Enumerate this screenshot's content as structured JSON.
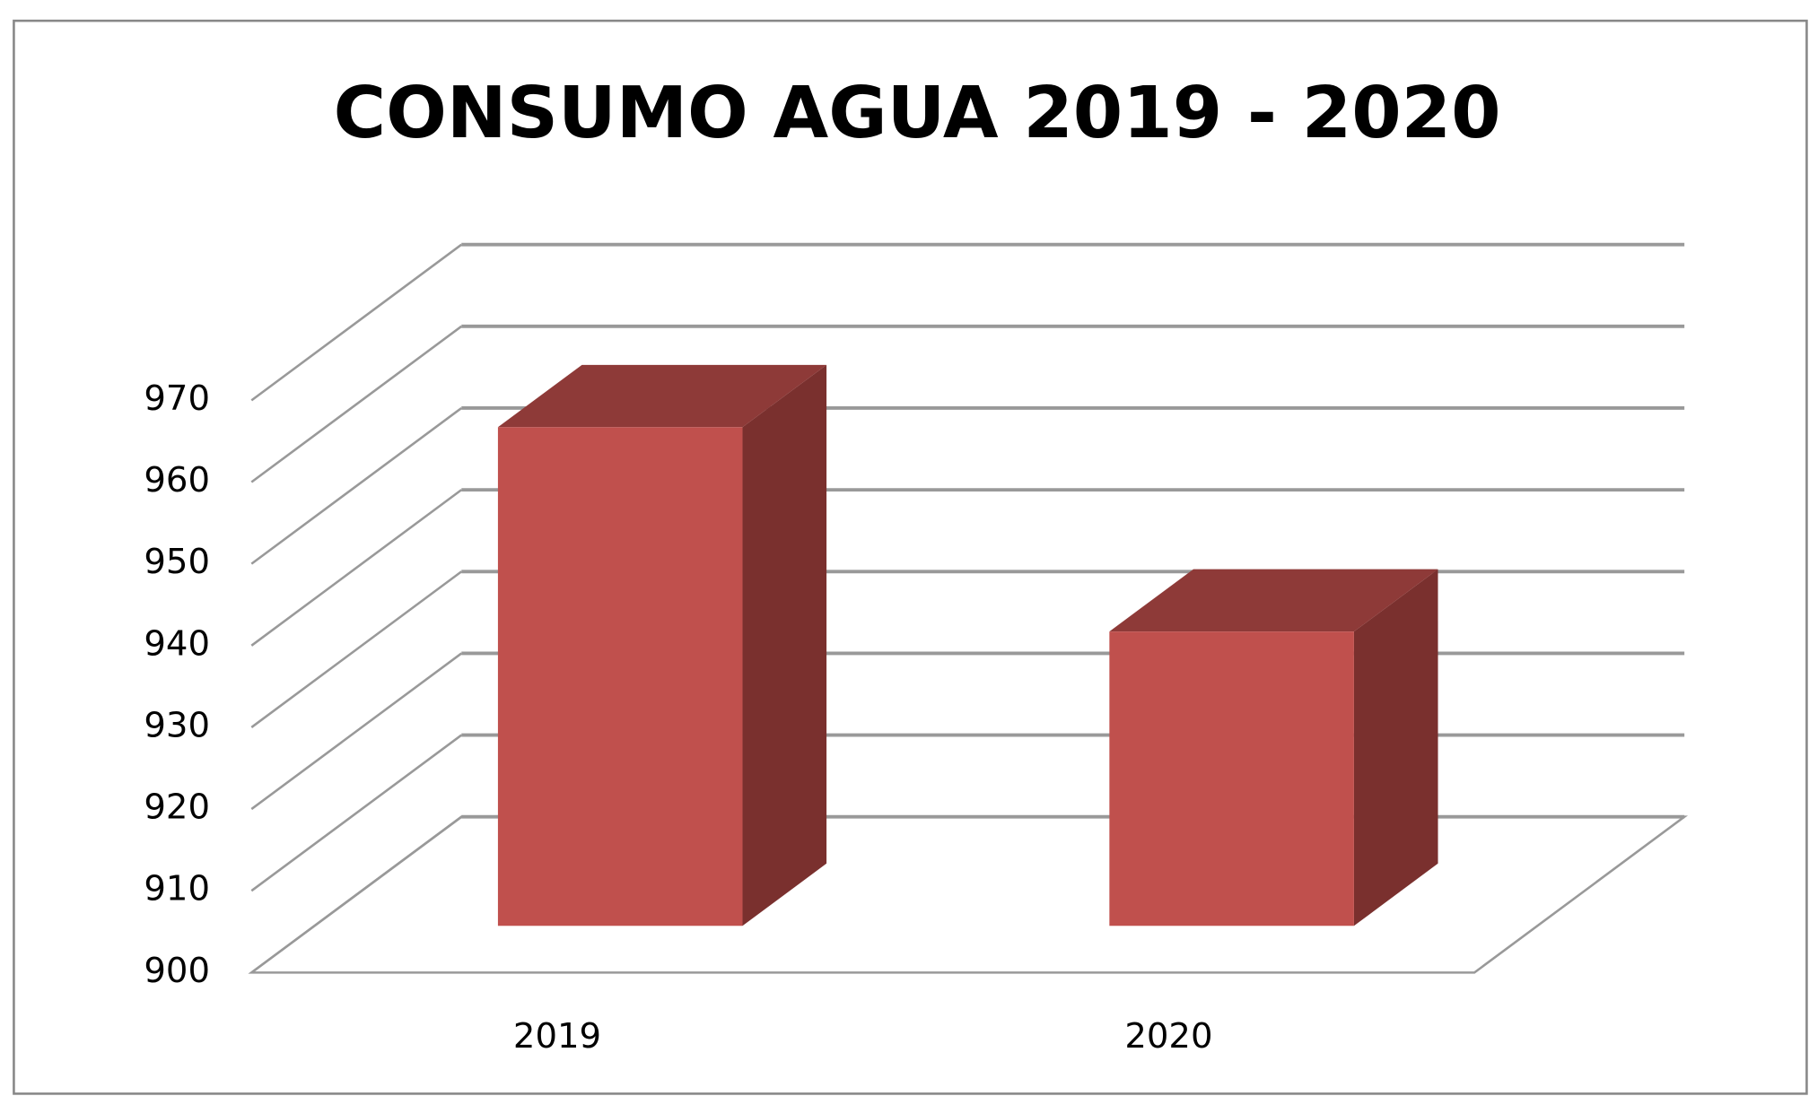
{
  "chart_data": {
    "type": "bar3d",
    "title": "CONSUMO AGUA 2019 - 2020",
    "categories": [
      "2019",
      "2020"
    ],
    "values": [
      961,
      936
    ],
    "color": "#c0504d",
    "ylim": [
      900,
      970
    ],
    "yticks": [
      900,
      910,
      920,
      930,
      940,
      950,
      960,
      970
    ],
    "grid": true
  }
}
